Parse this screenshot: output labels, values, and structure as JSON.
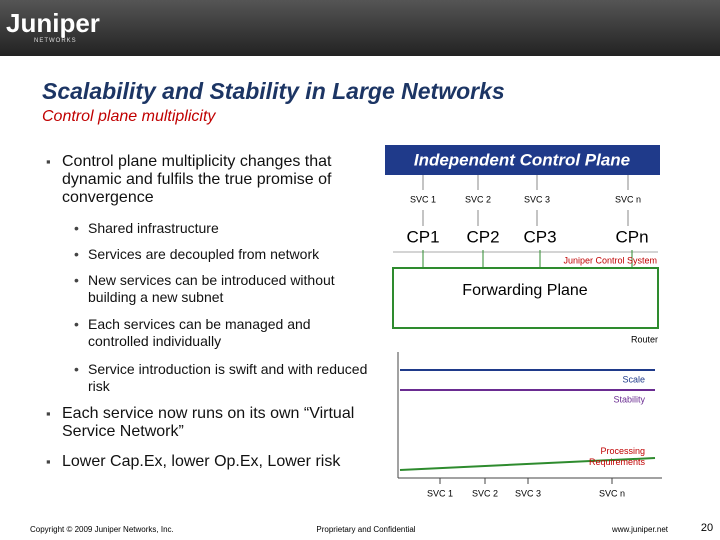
{
  "header": {
    "logo": "Juniper",
    "logo_sub": "NETWORKS"
  },
  "title": "Scalability and Stability in Large Networks",
  "subtitle": "Control plane multiplicity",
  "bullets": [
    {
      "text": "Control plane multiplicity changes that dynamic and fulfils the true promise of convergence",
      "sub": [
        "Shared infrastructure",
        "Services are decoupled from network",
        "New services can be introduced without building a new subnet",
        "Each services can be managed and controlled individually",
        "Service introduction is swift and with reduced risk"
      ]
    },
    {
      "text": "Each service now runs on its own “Virtual Service Network”",
      "sub": []
    },
    {
      "text": "Lower Cap.Ex, lower Op.Ex, Lower risk",
      "sub": []
    }
  ],
  "diagram": {
    "header": "Independent Control Plane",
    "services": [
      "SVC 1",
      "SVC 2",
      "SVC 3",
      "SVC n"
    ],
    "control_planes": [
      "CP1",
      "CP2",
      "CP3",
      "CPn"
    ],
    "control_system": "Juniper Control System",
    "forwarding": "Forwarding Plane",
    "router": "Router",
    "graph": {
      "lines": [
        "Scale",
        "Stability",
        "Processing Requirements"
      ],
      "x_labels": [
        "SVC 1",
        "SVC 2",
        "SVC 3",
        "SVC n"
      ]
    }
  },
  "footer": {
    "copyright": "Copyright © 2009 Juniper Networks, Inc.",
    "center": "Proprietary and Confidential",
    "url": "www.juniper.net",
    "page": "20"
  }
}
